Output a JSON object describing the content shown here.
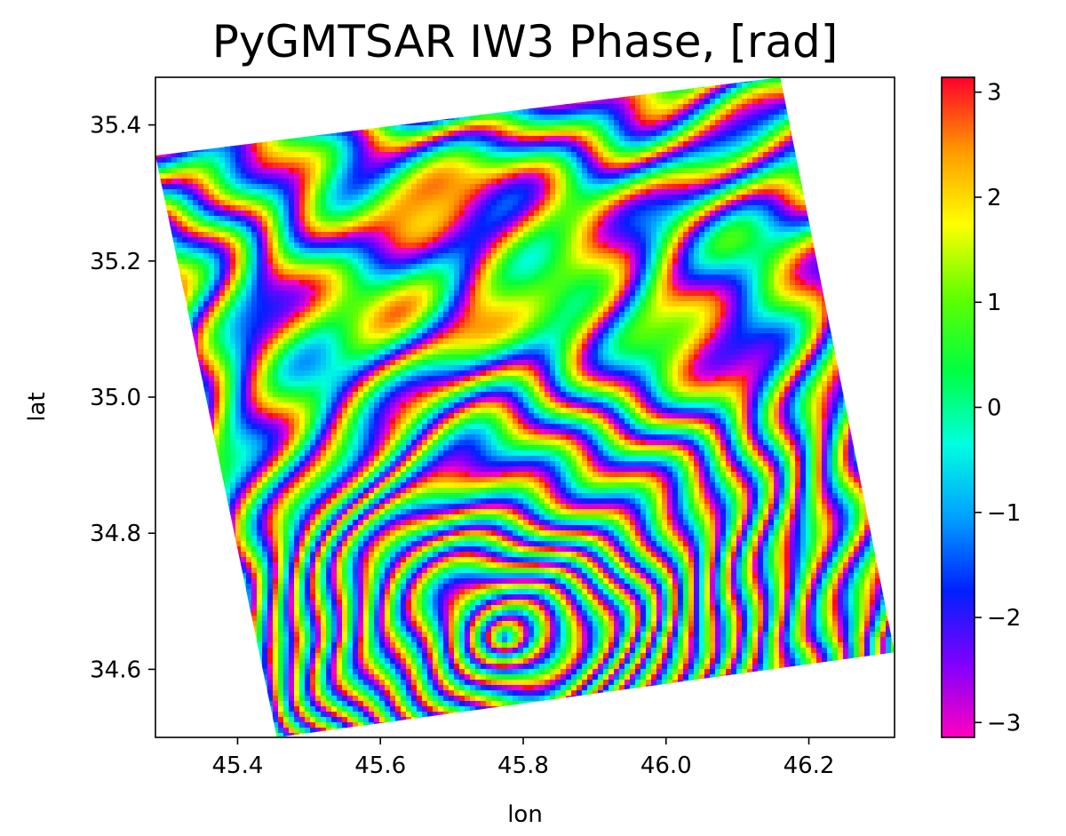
{
  "chart_data": {
    "type": "heatmap",
    "title": "PyGMTSAR IW3 Phase, [rad]",
    "xlabel": "lon",
    "ylabel": "lat",
    "xlim": [
      45.285,
      46.32
    ],
    "ylim": [
      34.5,
      35.47
    ],
    "x_ticks": [
      {
        "value": 45.4,
        "label": "45.4"
      },
      {
        "value": 45.6,
        "label": "45.6"
      },
      {
        "value": 45.8,
        "label": "45.8"
      },
      {
        "value": 46.0,
        "label": "46.0"
      },
      {
        "value": 46.2,
        "label": "46.2"
      }
    ],
    "y_ticks": [
      {
        "value": 34.6,
        "label": "34.6"
      },
      {
        "value": 34.8,
        "label": "34.8"
      },
      {
        "value": 35.0,
        "label": "35.0"
      },
      {
        "value": 35.2,
        "label": "35.2"
      },
      {
        "value": 35.4,
        "label": "35.4"
      }
    ],
    "colorbar": {
      "cmap": "gist_rainbow",
      "min": -3.1416,
      "max": 3.1416,
      "ticks": [
        {
          "value": -3,
          "label": "−3"
        },
        {
          "value": -2,
          "label": "−2"
        },
        {
          "value": -1,
          "label": "−1"
        },
        {
          "value": 0,
          "label": "0"
        },
        {
          "value": 1,
          "label": "1"
        },
        {
          "value": 2,
          "label": "2"
        },
        {
          "value": 3,
          "label": "3"
        }
      ],
      "colors": [
        "#ff00bf",
        "#8000ff",
        "#0020ff",
        "#00a0ff",
        "#00ffe0",
        "#00ff40",
        "#60ff00",
        "#ffff00",
        "#ff9900",
        "#ff0029"
      ]
    },
    "swath_corners": [
      {
        "lon": 45.285,
        "lat": 35.355
      },
      {
        "lon": 46.16,
        "lat": 35.47
      },
      {
        "lon": 46.32,
        "lat": 34.625
      },
      {
        "lon": 45.455,
        "lat": 34.5
      }
    ],
    "deformation_center": {
      "lon": 45.77,
      "lat": 34.65
    },
    "grid": false
  }
}
